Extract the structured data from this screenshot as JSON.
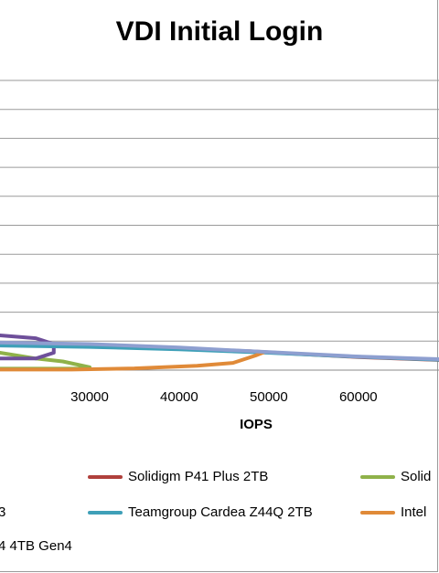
{
  "chart_data": {
    "type": "line",
    "title": "VDI Initial Login",
    "xlabel": "IOPS",
    "ylabel": "",
    "x_ticks": [
      "30000",
      "40000",
      "50000",
      "60000"
    ],
    "xlim": [
      20000,
      69000
    ],
    "gridlines": true,
    "legend_position": "bottom",
    "legend": [
      {
        "label": "Solidigm P41 Plus 2TB",
        "color": "#b0403c"
      },
      {
        "label": "Solid",
        "color": "#8fb24a"
      },
      {
        "label": "3",
        "color": "#6e4f9a"
      },
      {
        "label": "Teamgroup Cardea Z44Q 2TB",
        "color": "#3fa0b8"
      },
      {
        "label": "Intel",
        "color": "#e08a38"
      },
      {
        "label": "4 4TB Gen4",
        "color": "#8e9fd0"
      }
    ],
    "series": [
      {
        "name": "Solidigm P41 Plus 2TB",
        "color": "#b0403c",
        "points": [
          [
            20000,
            0.9
          ],
          [
            30000,
            0.85
          ],
          [
            40000,
            0.75
          ],
          [
            48000,
            0.65
          ],
          [
            52000,
            0.58
          ],
          [
            60000,
            0.45
          ],
          [
            69000,
            0.35
          ]
        ]
      },
      {
        "name": "Solid",
        "color": "#8fb24a",
        "points": [
          [
            20000,
            0.6
          ],
          [
            24000,
            0.4
          ],
          [
            27000,
            0.3
          ],
          [
            30000,
            0.1
          ],
          [
            29000,
            0.05
          ],
          [
            20000,
            0.05
          ]
        ]
      },
      {
        "name": "3",
        "color": "#6e4f9a",
        "points": [
          [
            20000,
            1.2
          ],
          [
            24000,
            1.1
          ],
          [
            26000,
            0.9
          ],
          [
            26000,
            0.6
          ],
          [
            24000,
            0.4
          ],
          [
            20000,
            0.4
          ]
        ]
      },
      {
        "name": "Teamgroup Cardea Z44Q 2TB",
        "color": "#3fa0b8",
        "points": [
          [
            20000,
            0.85
          ],
          [
            30000,
            0.8
          ],
          [
            40000,
            0.72
          ],
          [
            50000,
            0.6
          ],
          [
            60000,
            0.46
          ],
          [
            69000,
            0.36
          ]
        ]
      },
      {
        "name": "Intel",
        "color": "#e08a38",
        "points": [
          [
            20000,
            0.02
          ],
          [
            28000,
            0.02
          ],
          [
            35000,
            0.06
          ],
          [
            42000,
            0.15
          ],
          [
            46000,
            0.25
          ],
          [
            48500,
            0.5
          ],
          [
            49500,
            0.62
          ]
        ]
      },
      {
        "name": "4 4TB Gen4",
        "color": "#8e9fd0",
        "points": [
          [
            20000,
            0.95
          ],
          [
            30000,
            0.9
          ],
          [
            40000,
            0.78
          ],
          [
            50000,
            0.62
          ],
          [
            60000,
            0.47
          ],
          [
            69000,
            0.38
          ]
        ]
      }
    ]
  }
}
